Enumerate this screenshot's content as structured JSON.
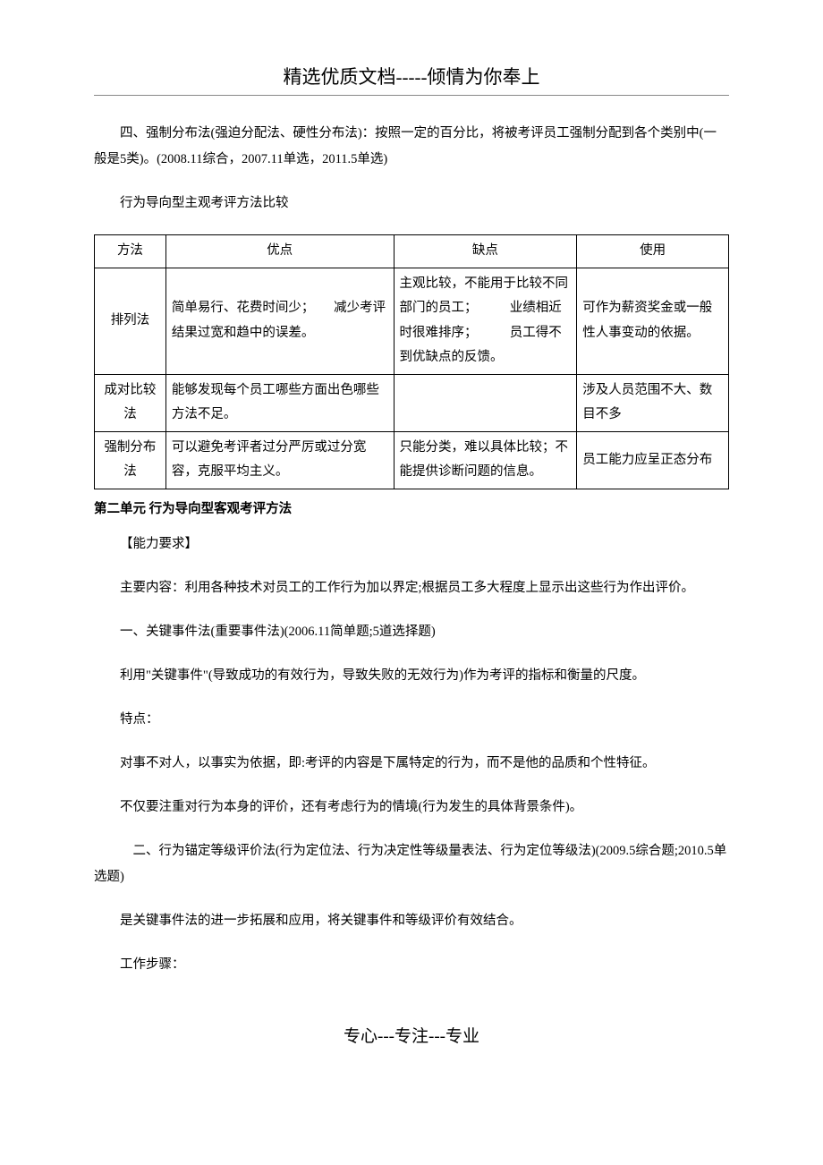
{
  "header": {
    "title": "精选优质文档-----倾情为你奉上"
  },
  "para1": "四、强制分布法(强迫分配法、硬性分布法)：按照一定的百分比，将被考评员工强制分配到各个类别中(一般是5类)。(2008.11综合，2007.11单选，2011.5单选)",
  "para2": "行为导向型主观考评方法比较",
  "table": {
    "headers": {
      "method": "方法",
      "advantage": "优点",
      "disadvantage": "缺点",
      "usage": "使用"
    },
    "rows": [
      {
        "method": "排列法",
        "advantage": "简单易行、花费时间少；　　减少考评结果过宽和趋中的误差。",
        "disadvantage": "主观比较，不能用于比较不同部门的员工；　　　业绩相近时很难排序；　　　员工得不到优缺点的反馈。",
        "usage": "可作为薪资奖金或一般性人事变动的依据。"
      },
      {
        "method": "成对比较法",
        "advantage": "能够发现每个员工哪些方面出色哪些方法不足。",
        "disadvantage": "",
        "usage": "涉及人员范围不大、数目不多"
      },
      {
        "method": "强制分布法",
        "advantage": "可以避免考评者过分严厉或过分宽容，克服平均主义。",
        "disadvantage": "只能分类，难以具体比较；不能提供诊断问题的信息。",
        "usage": "员工能力应呈正态分布"
      }
    ]
  },
  "section2": "第二单元 行为导向型客观考评方法",
  "para3": "【能力要求】",
  "para4": "主要内容：利用各种技术对员工的工作行为加以界定;根据员工多大程度上显示出这些行为作出评价。",
  "para5": "一、关键事件法(重要事件法)(2006.11简单题;5道选择题)",
  "para6": "利用\"关键事件\"(导致成功的有效行为，导致失败的无效行为)作为考评的指标和衡量的尺度。",
  "para7": "特点：",
  "para8": "对事不对人，以事实为依据，即:考评的内容是下属特定的行为，而不是他的品质和个性特征。",
  "para9": "不仅要注重对行为本身的评价，还有考虑行为的情境(行为发生的具体背景条件)。",
  "para10": "　二、行为锚定等级评价法(行为定位法、行为决定性等级量表法、行为定位等级法)(2009.5综合题;2010.5单选题)",
  "para11": "是关键事件法的进一步拓展和应用，将关键事件和等级评价有效结合。",
  "para12": "工作步骤：",
  "footer": {
    "text": "专心---专注---专业"
  }
}
